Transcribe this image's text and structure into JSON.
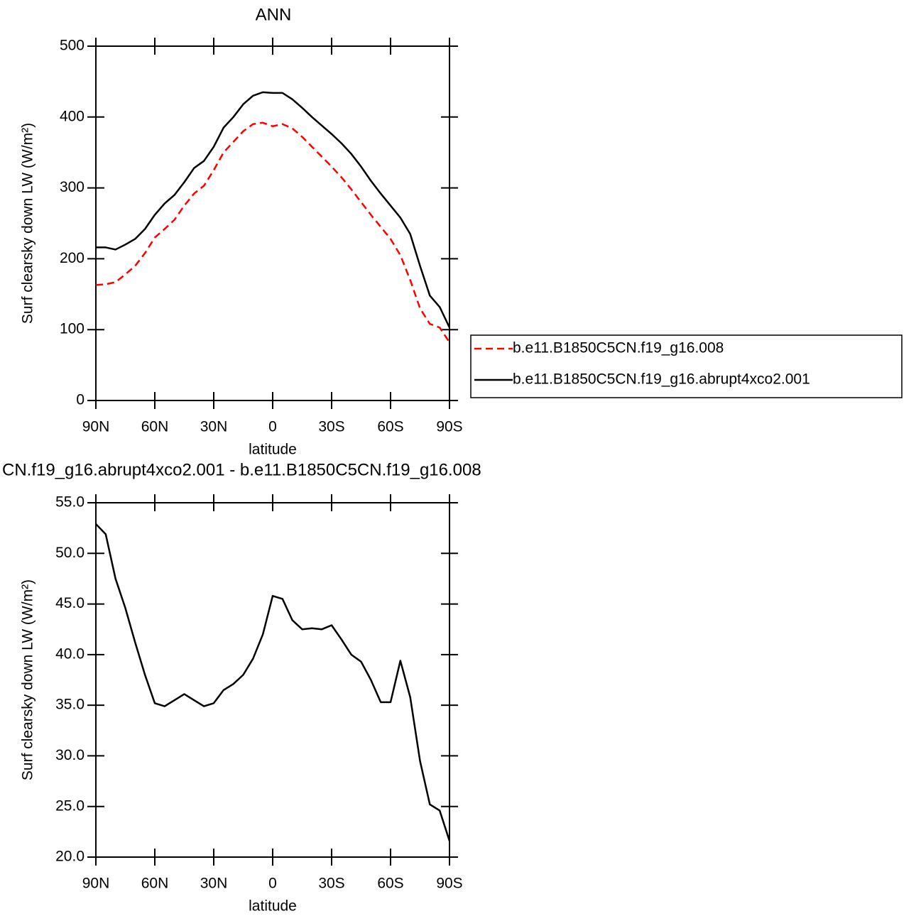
{
  "chart_data": [
    {
      "type": "line",
      "title": "ANN",
      "x_label": "latitude",
      "y_label": "Surf clearsky down LW (W/m²)",
      "x": [
        90,
        85,
        80,
        75,
        70,
        65,
        60,
        55,
        50,
        45,
        40,
        35,
        30,
        25,
        20,
        15,
        10,
        5,
        0,
        -5,
        -10,
        -15,
        -20,
        -25,
        -30,
        -35,
        -40,
        -45,
        -50,
        -55,
        -60,
        -65,
        -70,
        -75,
        -80,
        -85,
        -90
      ],
      "xlim": [
        90,
        -90
      ],
      "xticks": [
        {
          "value": 90,
          "label": "90N"
        },
        {
          "value": 60,
          "label": "60N"
        },
        {
          "value": 30,
          "label": "30N"
        },
        0,
        {
          "value": -30,
          "label": "30S"
        },
        {
          "value": -60,
          "label": "60S"
        },
        {
          "value": -90,
          "label": "90S"
        }
      ],
      "ylim": [
        0,
        500
      ],
      "yticks": [
        0,
        100,
        200,
        300,
        400,
        500
      ],
      "legend": "outside-right",
      "series": [
        {
          "name": "b.e11.B1850C5CN.f19_g16.008",
          "color": "#ff0000",
          "dashed": true,
          "values": [
            163,
            164,
            167,
            178,
            190,
            208,
            230,
            242,
            255,
            275,
            292,
            303,
            325,
            350,
            365,
            380,
            390,
            392,
            387,
            390,
            384,
            372,
            358,
            344,
            330,
            315,
            298,
            280,
            262,
            245,
            228,
            205,
            170,
            130,
            108,
            103,
            82
          ]
        },
        {
          "name": "b.e11.B1850C5CN.f19_g16.abrupt4xco2.001",
          "color": "#000000",
          "dashed": false,
          "values": [
            216,
            216,
            213,
            220,
            228,
            242,
            262,
            278,
            290,
            308,
            328,
            338,
            358,
            385,
            400,
            418,
            430,
            435,
            434,
            434,
            425,
            413,
            400,
            388,
            376,
            363,
            348,
            330,
            310,
            292,
            275,
            258,
            235,
            190,
            148,
            132,
            103
          ]
        }
      ]
    },
    {
      "type": "line",
      "title": "CN.f19_g16.abrupt4xco2.001 - b.e11.B1850C5CN.f19_g16.008",
      "x_label": "latitude",
      "y_label": "Surf clearsky down LW (W/m²)",
      "x": [
        90,
        85,
        80,
        75,
        70,
        65,
        60,
        55,
        50,
        45,
        40,
        35,
        30,
        25,
        20,
        15,
        10,
        5,
        0,
        -5,
        -10,
        -15,
        -20,
        -25,
        -30,
        -35,
        -40,
        -45,
        -50,
        -55,
        -60,
        -65,
        -70,
        -75,
        -80,
        -85,
        -90
      ],
      "xlim": [
        90,
        -90
      ],
      "xticks": [
        {
          "value": 90,
          "label": "90N"
        },
        {
          "value": 60,
          "label": "60N"
        },
        {
          "value": 30,
          "label": "30N"
        },
        0,
        {
          "value": -30,
          "label": "30S"
        },
        {
          "value": -60,
          "label": "60S"
        },
        {
          "value": -90,
          "label": "90S"
        }
      ],
      "ylim": [
        20,
        55
      ],
      "yticks": [
        {
          "value": 20,
          "label": "20.0"
        },
        {
          "value": 25,
          "label": "25.0"
        },
        {
          "value": 30,
          "label": "30.0"
        },
        {
          "value": 35,
          "label": "35.0"
        },
        {
          "value": 40,
          "label": "40.0"
        },
        {
          "value": 45,
          "label": "45.0"
        },
        {
          "value": 50,
          "label": "50.0"
        },
        {
          "value": 55,
          "label": "55.0"
        }
      ],
      "series": [
        {
          "color": "#000000",
          "dashed": false,
          "values": [
            52.9,
            51.9,
            47.5,
            44.6,
            41.2,
            38.0,
            35.2,
            34.9,
            35.5,
            36.1,
            35.5,
            34.9,
            35.2,
            36.5,
            37.1,
            38.0,
            39.6,
            42.0,
            45.8,
            45.5,
            43.4,
            42.5,
            42.6,
            42.5,
            42.9,
            41.5,
            40.0,
            39.3,
            37.5,
            35.3,
            35.3,
            39.4,
            35.8,
            29.5,
            25.2,
            24.6,
            21.6
          ]
        }
      ]
    }
  ]
}
